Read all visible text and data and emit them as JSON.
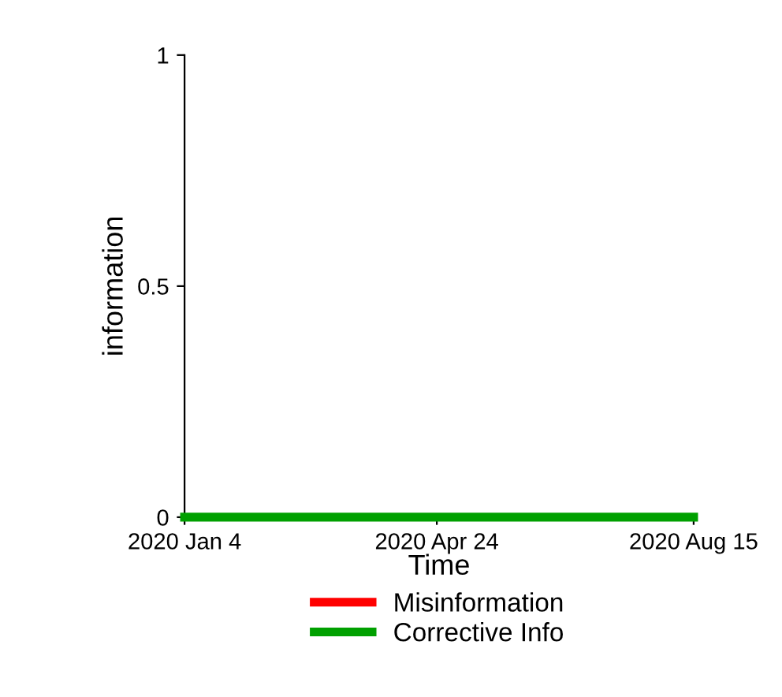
{
  "chart_data": {
    "type": "line",
    "xlabel": "Time",
    "ylabel": "information",
    "x": [
      "2020-01-04",
      "2020-08-15"
    ],
    "series": [
      {
        "name": "Misinformation",
        "color": "#ff0000",
        "values": [
          null,
          null
        ]
      },
      {
        "name": "Corrective Info",
        "color": "#00a000",
        "values": [
          0,
          0
        ]
      }
    ],
    "xlim": [
      "2020-01-04",
      "2020-08-15"
    ],
    "xticks": [
      {
        "value": "2020-01-04",
        "label": "2020 Jan 4"
      },
      {
        "value": "2020-04-24",
        "label": "2020 Apr 24"
      },
      {
        "value": "2020-08-15",
        "label": "2020 Aug 15"
      }
    ],
    "ylim": [
      0,
      1
    ],
    "yticks": [
      0,
      0.5,
      1
    ],
    "grid": false,
    "legend": "bottom",
    "marker": "none",
    "line_style": "solid"
  }
}
